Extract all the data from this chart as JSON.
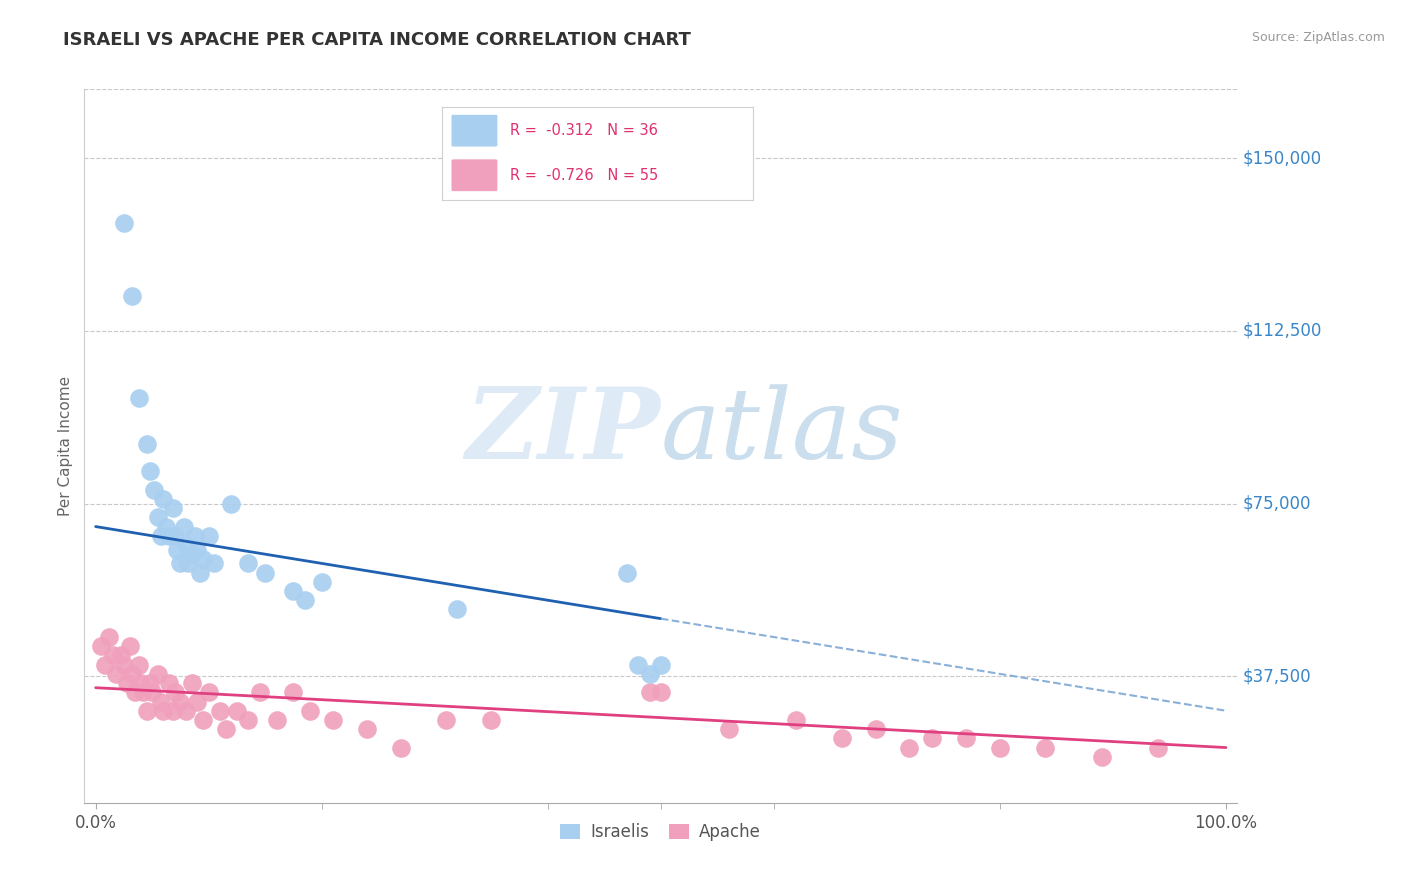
{
  "title": "ISRAELI VS APACHE PER CAPITA INCOME CORRELATION CHART",
  "source": "Source: ZipAtlas.com",
  "ylabel": "Per Capita Income",
  "watermark": "ZIPatlas",
  "legend_israelis": "Israelis",
  "legend_apache": "Apache",
  "r_israelis": "-0.312",
  "n_israelis": 36,
  "r_apache": "-0.726",
  "n_apache": 55,
  "ytick_labels": [
    "$150,000",
    "$112,500",
    "$75,000",
    "$37,500"
  ],
  "ytick_values": [
    150000,
    112500,
    75000,
    37500
  ],
  "xtick_labels": [
    "0.0%",
    "100.0%"
  ],
  "xlim": [
    -0.01,
    1.01
  ],
  "ylim": [
    10000,
    165000
  ],
  "background_color": "#ffffff",
  "grid_color": "#c8c8c8",
  "title_color": "#333333",
  "ytick_color": "#3a86c8",
  "scatter_color_israelis": "#a8cef0",
  "scatter_color_apache": "#f0a0bc",
  "line_color_israelis": "#2060b0",
  "line_color_apache": "#e04080",
  "line_color_dashed": "#8ab0d8",
  "israelis_x": [
    0.025,
    0.032,
    0.038,
    0.045,
    0.048,
    0.052,
    0.055,
    0.058,
    0.06,
    0.062,
    0.065,
    0.068,
    0.07,
    0.072,
    0.075,
    0.078,
    0.08,
    0.082,
    0.085,
    0.088,
    0.09,
    0.092,
    0.095,
    0.1,
    0.105,
    0.12,
    0.135,
    0.15,
    0.175,
    0.185,
    0.2,
    0.32,
    0.47,
    0.48,
    0.49,
    0.5
  ],
  "israelis_y": [
    136000,
    120000,
    98000,
    88000,
    82000,
    78000,
    72000,
    68000,
    76000,
    70000,
    68000,
    74000,
    68000,
    65000,
    62000,
    70000,
    66000,
    62000,
    64000,
    68000,
    65000,
    60000,
    63000,
    68000,
    62000,
    75000,
    62000,
    60000,
    56000,
    54000,
    58000,
    52000,
    60000,
    40000,
    38000,
    40000
  ],
  "apache_x": [
    0.005,
    0.008,
    0.012,
    0.015,
    0.018,
    0.022,
    0.025,
    0.028,
    0.03,
    0.032,
    0.035,
    0.038,
    0.04,
    0.042,
    0.045,
    0.048,
    0.05,
    0.055,
    0.058,
    0.06,
    0.065,
    0.068,
    0.07,
    0.075,
    0.08,
    0.085,
    0.09,
    0.095,
    0.1,
    0.11,
    0.115,
    0.125,
    0.135,
    0.145,
    0.16,
    0.175,
    0.19,
    0.21,
    0.24,
    0.27,
    0.31,
    0.35,
    0.49,
    0.5,
    0.56,
    0.62,
    0.66,
    0.69,
    0.72,
    0.74,
    0.77,
    0.8,
    0.84,
    0.89,
    0.94
  ],
  "apache_y": [
    44000,
    40000,
    46000,
    42000,
    38000,
    42000,
    40000,
    36000,
    44000,
    38000,
    34000,
    40000,
    36000,
    34000,
    30000,
    36000,
    34000,
    38000,
    32000,
    30000,
    36000,
    30000,
    34000,
    32000,
    30000,
    36000,
    32000,
    28000,
    34000,
    30000,
    26000,
    30000,
    28000,
    34000,
    28000,
    34000,
    30000,
    28000,
    26000,
    22000,
    28000,
    28000,
    34000,
    34000,
    26000,
    28000,
    24000,
    26000,
    22000,
    24000,
    24000,
    22000,
    22000,
    20000,
    22000
  ]
}
